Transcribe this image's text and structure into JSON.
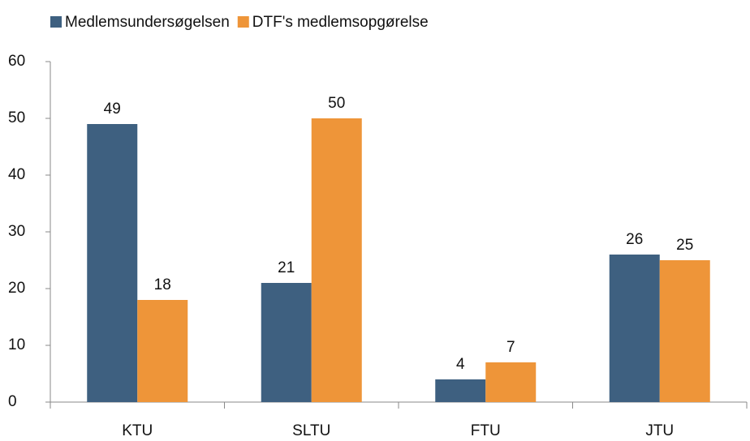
{
  "chart_data": {
    "type": "bar",
    "categories": [
      "KTU",
      "SLTU",
      "FTU",
      "JTU"
    ],
    "series": [
      {
        "name": "Medlemsundersøgelsen",
        "color": "#3e6080",
        "values": [
          49,
          21,
          4,
          26
        ]
      },
      {
        "name": "DTF's medlemsopgørelse",
        "color": "#ee9539",
        "values": [
          18,
          50,
          7,
          25
        ]
      }
    ],
    "ylim": [
      0,
      60
    ],
    "yticks": [
      0,
      10,
      20,
      30,
      40,
      50,
      60
    ],
    "grid": false,
    "legend": "top-left"
  }
}
